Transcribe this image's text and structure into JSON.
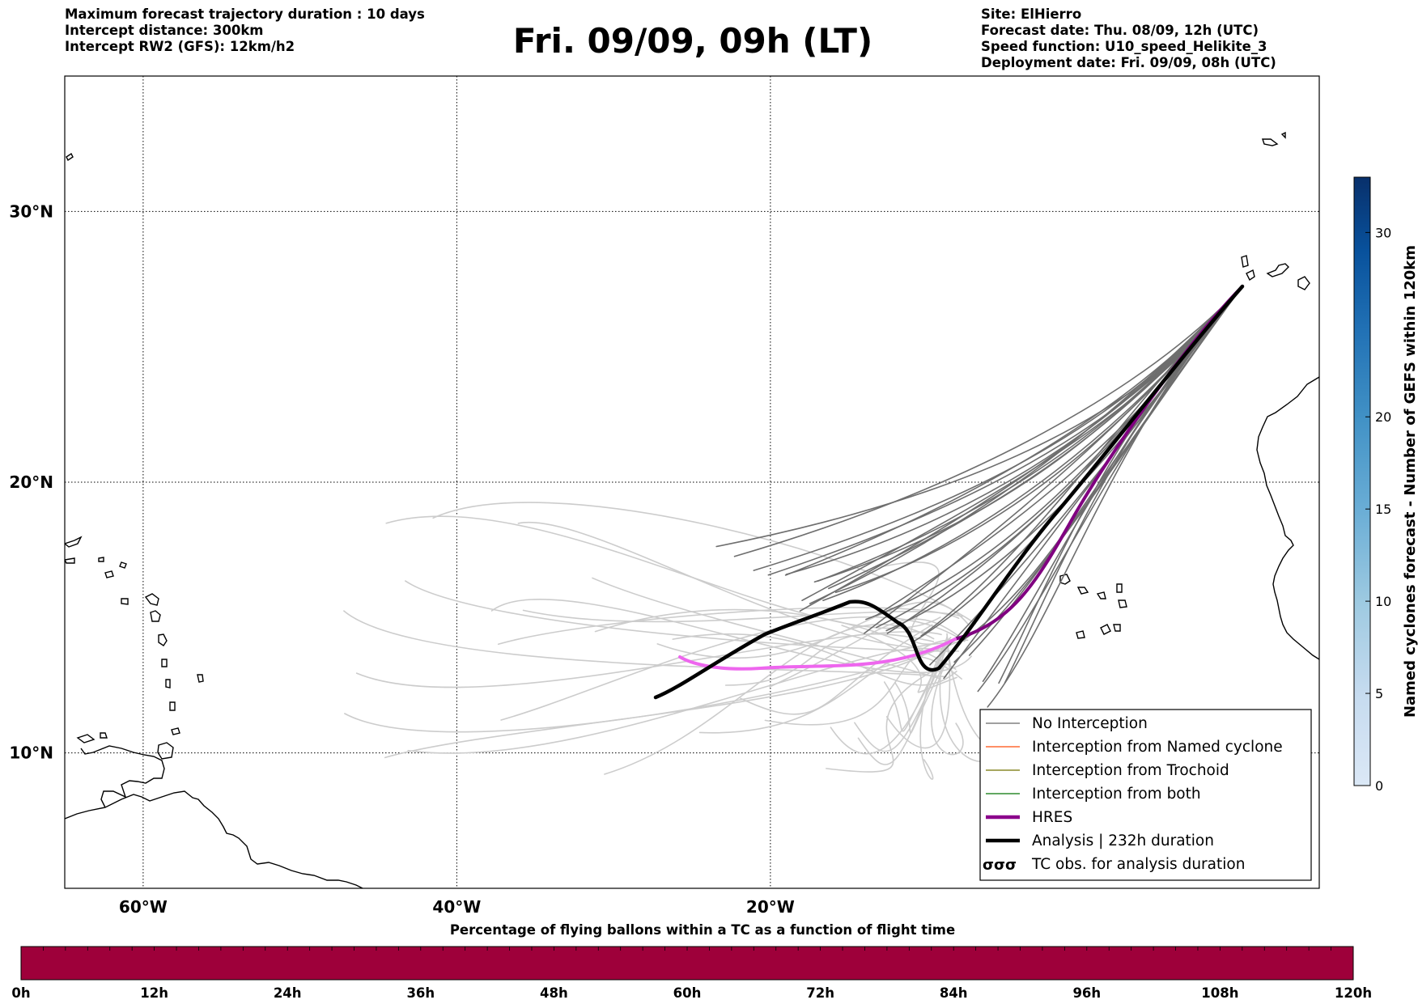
{
  "header": {
    "left_lines": [
      "Maximum forecast trajectory duration : 10 days",
      "Intercept distance: 300km",
      "Intercept RW2 (GFS):  12km/h2"
    ],
    "title": "Fri. 09/09, 09h (LT)",
    "right_lines": [
      "Site: ElHierro",
      "Forecast date: Thu. 08/09, 12h (UTC)",
      "Speed function: U10_speed_Helikite_3",
      "Deployment date: Fri. 09/09, 08h (UTC)"
    ]
  },
  "map": {
    "lon_range": [
      -65,
      15
    ],
    "lat_range": [
      5,
      35
    ],
    "lon_ticks": [
      {
        "value": -60,
        "label": "60°W"
      },
      {
        "value": -40,
        "label": "40°W"
      },
      {
        "value": -20,
        "label": "20°W"
      }
    ],
    "lat_ticks": [
      {
        "value": 30,
        "label": "30°N"
      },
      {
        "value": 20,
        "label": "20°N"
      },
      {
        "value": 10,
        "label": "10°N"
      }
    ],
    "legend": [
      {
        "label": "No Interception",
        "color": "#808080",
        "style": "thin"
      },
      {
        "label": "Interception from Named cyclone",
        "color": "#ff6a33",
        "style": "thin"
      },
      {
        "label": "Interception from Trochoid",
        "color": "#8a8a2a",
        "style": "thin"
      },
      {
        "label": "Interception from both",
        "color": "#2e8b2e",
        "style": "thin"
      },
      {
        "label": "HRES",
        "color": "#8b008b",
        "style": "thick"
      },
      {
        "label": "Analysis | 232h duration",
        "color": "#000000",
        "style": "thick"
      },
      {
        "label": "TC obs. for analysis duration",
        "color": "#000000",
        "style": "symbol"
      }
    ],
    "colors": {
      "ensemble_early": "#6e6e6e",
      "ensemble_late": "#cccccc",
      "hres_early": "#800080",
      "hres_late": "#ee66ee",
      "analysis": "#000000"
    }
  },
  "colorbar_right": {
    "label": "Named cyclones forecast - Number of GEFS within 120km",
    "ticks": [
      "0",
      "5",
      "10",
      "15",
      "20",
      "30"
    ]
  },
  "colorbar_bottom": {
    "title": "Percentage of flying ballons within a TC as a function of flight time",
    "color": "#9e003a",
    "ticks": [
      "0h",
      "12h",
      "24h",
      "36h",
      "48h",
      "60h",
      "72h",
      "84h",
      "96h",
      "108h",
      "120h"
    ]
  }
}
